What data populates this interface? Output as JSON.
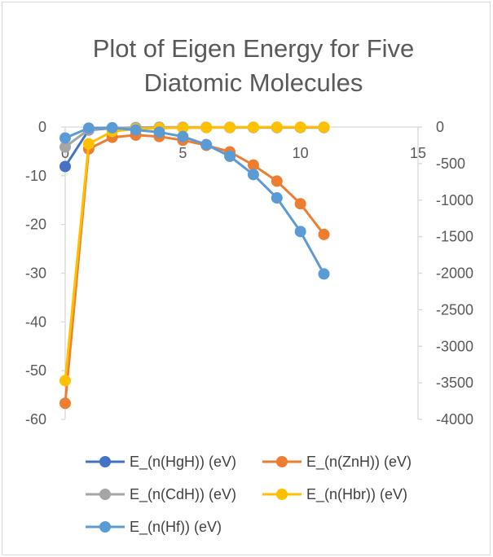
{
  "chart_data": {
    "type": "scatter",
    "title_lines": [
      "Plot of Eigen Energy for Five",
      "Diatomic Molecules"
    ],
    "x_axis": {
      "range": [
        0,
        15
      ],
      "ticks": [
        0,
        5,
        10,
        15
      ]
    },
    "y_left": {
      "range": [
        -60,
        0
      ],
      "ticks": [
        0,
        -10,
        -20,
        -30,
        -40,
        -50,
        -60
      ]
    },
    "y_right": {
      "range": [
        -4000,
        0
      ],
      "ticks": [
        0,
        -500,
        -1000,
        -1500,
        -2000,
        -2500,
        -3000,
        -3500,
        -4000
      ]
    },
    "x": [
      0,
      1,
      2,
      3,
      4,
      5,
      6,
      7,
      8,
      9,
      10,
      11
    ],
    "series": [
      {
        "name": "E_(n(HgH)) (eV)",
        "color": "#4472c4",
        "axis": "left",
        "values": [
          -8.1,
          -0.6,
          -0.25,
          -0.15,
          -0.12,
          -0.1,
          -0.1,
          -0.1,
          -0.1,
          -0.1,
          -0.1,
          -0.1
        ]
      },
      {
        "name": "E_(n(ZnH)) (eV)",
        "color": "#ed7d31",
        "axis": "right",
        "values": [
          -3780,
          -300,
          -140,
          -110,
          -130,
          -180,
          -250,
          -340,
          -520,
          -740,
          -1050,
          -1470
        ]
      },
      {
        "name": "E_(n(CdH)) (eV)",
        "color": "#a5a5a5",
        "axis": "left",
        "values": [
          -4.1,
          -0.5,
          -0.2,
          -0.1,
          -0.05,
          -0.05,
          -0.05,
          -0.05,
          -0.05,
          -0.05,
          -0.05,
          -0.05
        ]
      },
      {
        "name": "E_(n(Hbr)) (eV)",
        "color": "#ffc000",
        "axis": "right",
        "values": [
          -3470,
          -230,
          -60,
          -25,
          -15,
          -10,
          -7,
          -5,
          -4,
          -3,
          -3,
          -3
        ]
      },
      {
        "name": "E_(n(Hf)) (eV)",
        "color": "#5b9bd5",
        "axis": "right",
        "values": [
          -150,
          -15,
          -10,
          -40,
          -70,
          -130,
          -240,
          -400,
          -650,
          -970,
          -1430,
          -2010
        ]
      }
    ],
    "legend_position": "bottom",
    "grid": false
  }
}
